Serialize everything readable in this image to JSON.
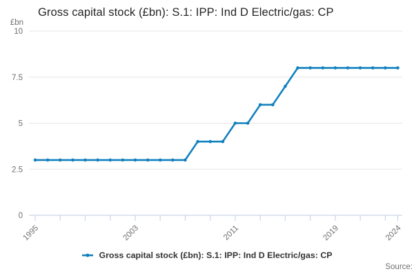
{
  "title": "Gross capital stock (£bn): S.1: IPP: Ind D Electric/gas: CP",
  "y_axis_unit": "£bn",
  "source_label": "Source:",
  "legend": {
    "label": "Gross capital stock (£bn): S.1: IPP: Ind D Electric/gas: CP"
  },
  "colors": {
    "line": "#1180be",
    "grid": "#e6e6e6",
    "axis": "#c9d6e8",
    "tick_label": "#6e6e6e",
    "title_text": "#252525",
    "legend_text": "#333333",
    "source_text": "#6e6e6e"
  },
  "chart_data": {
    "type": "line",
    "title": "Gross capital stock (£bn): S.1: IPP: Ind D Electric/gas: CP",
    "xlabel": "",
    "ylabel": "£bn",
    "x": [
      1995,
      1996,
      1997,
      1998,
      1999,
      2000,
      2001,
      2002,
      2003,
      2004,
      2005,
      2006,
      2007,
      2008,
      2009,
      2010,
      2011,
      2012,
      2013,
      2014,
      2015,
      2016,
      2017,
      2018,
      2019,
      2020,
      2021,
      2022,
      2023,
      2024
    ],
    "series": [
      {
        "name": "Gross capital stock (£bn): S.1: IPP: Ind D Electric/gas: CP",
        "values": [
          3,
          3,
          3,
          3,
          3,
          3,
          3,
          3,
          3,
          3,
          3,
          3,
          3,
          4,
          4,
          4,
          5,
          5,
          6,
          6,
          7,
          8,
          8,
          8,
          8,
          8,
          8,
          8,
          8,
          8
        ]
      }
    ],
    "ylim": [
      0,
      10
    ],
    "yticks": [
      0,
      2.5,
      5,
      7.5,
      10
    ],
    "ytick_labels": [
      "0",
      "2.5",
      "5",
      "7.5",
      "10"
    ],
    "xticks": [
      1995,
      1997,
      1999,
      2001,
      2003,
      2005,
      2007,
      2009,
      2011,
      2013,
      2015,
      2017,
      2019,
      2021,
      2023,
      2024
    ],
    "xtick_labeled": [
      "1995",
      "2003",
      "2011",
      "2019",
      "2024"
    ],
    "xtick_labeled_years": [
      1995,
      2003,
      2011,
      2019,
      2024
    ],
    "xlim": [
      1995,
      2024
    ],
    "grid": "horizontal",
    "legend_position": "bottom",
    "marker": "circle"
  }
}
